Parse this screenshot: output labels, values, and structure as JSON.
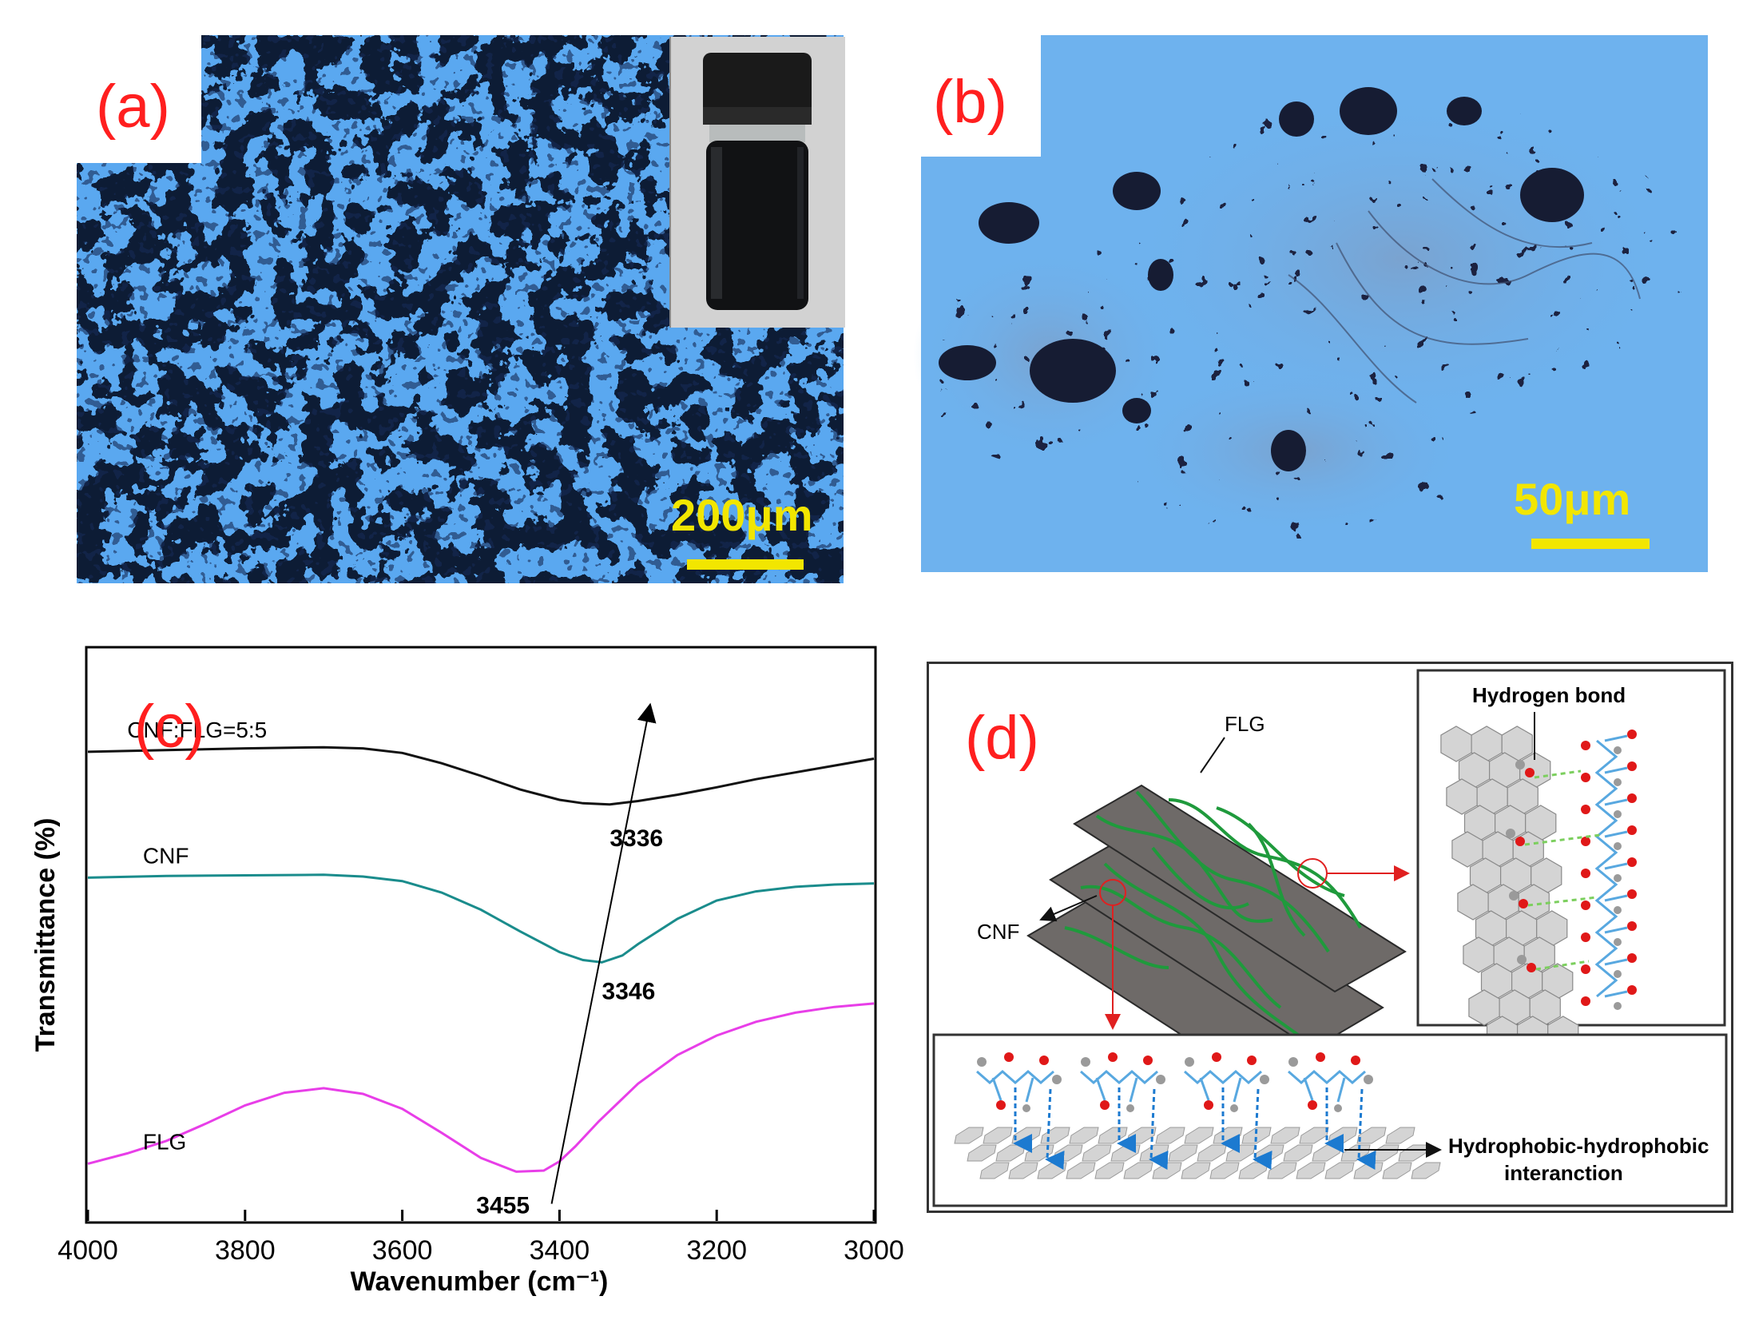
{
  "panels": {
    "a": {
      "label": "(a)",
      "scale_bar": "200μm",
      "colors": {
        "background": "#5aa8f0",
        "particles": "#0c1a36",
        "scale": "#f2e600",
        "label": "#ff1f1f"
      }
    },
    "b": {
      "label": "(b)",
      "scale_bar": "50μm",
      "colors": {
        "background": "#6eb2ee",
        "particles": "#1b2440",
        "scale": "#f2e600",
        "label": "#ff1f1f"
      }
    },
    "c": {
      "label": "(c)"
    },
    "d": {
      "label": "(d)",
      "labels": {
        "flg": "FLG",
        "cnf": "CNF",
        "hydrogen_bond": "Hydrogen bond",
        "hydrophobic_line1": "Hydrophobic-hydrophobic",
        "hydrophobic_line2": "interanction"
      },
      "colors": {
        "sheet": "#6e6a68",
        "fiber": "#1f9a3c",
        "hexagon": "#d4d4d4",
        "chain": "#58a8e0",
        "oxygen": "#e01818",
        "hydrogen": "#9a9a9a",
        "bond": "#7ccf5e"
      }
    }
  },
  "chart_data": {
    "type": "line",
    "xlabel": "Wavenumber (cm⁻¹)",
    "ylabel": "Transmittance (%)",
    "xlim": [
      4000,
      3000
    ],
    "x_reversed": true,
    "xticks": [
      4000,
      3800,
      3600,
      3400,
      3200,
      3000
    ],
    "yticks_shown": false,
    "ylim": [
      0,
      100
    ],
    "series": [
      {
        "name": "CNF:FLG=5:5",
        "color": "#111111",
        "x": [
          4000,
          3900,
          3800,
          3700,
          3650,
          3600,
          3550,
          3500,
          3450,
          3400,
          3370,
          3336,
          3300,
          3250,
          3200,
          3150,
          3100,
          3050,
          3000
        ],
        "y": [
          82,
          82.3,
          82.6,
          82.8,
          82.6,
          81.8,
          80,
          77.8,
          75.4,
          73.6,
          73,
          72.8,
          73.4,
          74.5,
          75.8,
          77.2,
          78.4,
          79.6,
          80.8
        ]
      },
      {
        "name": "CNF",
        "color": "#1a8c8c",
        "x": [
          4000,
          3900,
          3800,
          3700,
          3650,
          3600,
          3550,
          3500,
          3450,
          3400,
          3370,
          3346,
          3320,
          3300,
          3250,
          3200,
          3150,
          3100,
          3050,
          3000
        ],
        "y": [
          60,
          60.3,
          60.4,
          60.5,
          60.2,
          59.4,
          57.4,
          54.4,
          50.6,
          47,
          45.6,
          45.2,
          46.4,
          48.4,
          52.8,
          56,
          57.6,
          58.4,
          58.8,
          59
        ]
      },
      {
        "name": "FLG",
        "color": "#e83ee8",
        "x": [
          4000,
          3950,
          3900,
          3850,
          3800,
          3750,
          3700,
          3650,
          3600,
          3550,
          3500,
          3455,
          3420,
          3400,
          3380,
          3350,
          3300,
          3250,
          3200,
          3150,
          3100,
          3050,
          3000
        ],
        "y": [
          10,
          11.8,
          14,
          17,
          20.2,
          22.4,
          23.2,
          22.2,
          19.6,
          15.4,
          11,
          8.6,
          8.8,
          10.4,
          13,
          17.4,
          24,
          29,
          32.4,
          34.8,
          36.4,
          37.4,
          38
        ]
      }
    ],
    "annotations": [
      {
        "text": "3336",
        "x": 3336,
        "y": 72.8
      },
      {
        "text": "3346",
        "x": 3346,
        "y": 45.2
      },
      {
        "text": "3455",
        "x": 3455,
        "y": 8.6
      }
    ],
    "arrow": {
      "from": [
        3410,
        3
      ],
      "to": [
        3285,
        90
      ]
    },
    "legend_placement": "inline labels above each curve"
  }
}
